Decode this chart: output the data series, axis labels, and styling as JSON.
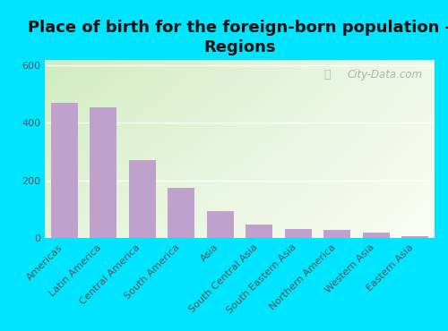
{
  "title": "Place of birth for the foreign-born population -\nRegions",
  "categories": [
    "Americas",
    "Latin America",
    "Central America",
    "South America",
    "Asia",
    "South Central Asia",
    "South Eastern Asia",
    "Northern America",
    "Western Asia",
    "Eastern Asia"
  ],
  "values": [
    470,
    455,
    270,
    175,
    95,
    48,
    33,
    30,
    20,
    8
  ],
  "bar_color": "#c0a0cc",
  "background_outer": "#00e5ff",
  "ylim": [
    0,
    620
  ],
  "yticks": [
    0,
    200,
    400,
    600
  ],
  "title_fontsize": 13,
  "tick_fontsize": 8,
  "watermark": "City-Data.com",
  "grad_top_left": "#d0ecc0",
  "grad_bottom_right": "#f5f8ee"
}
